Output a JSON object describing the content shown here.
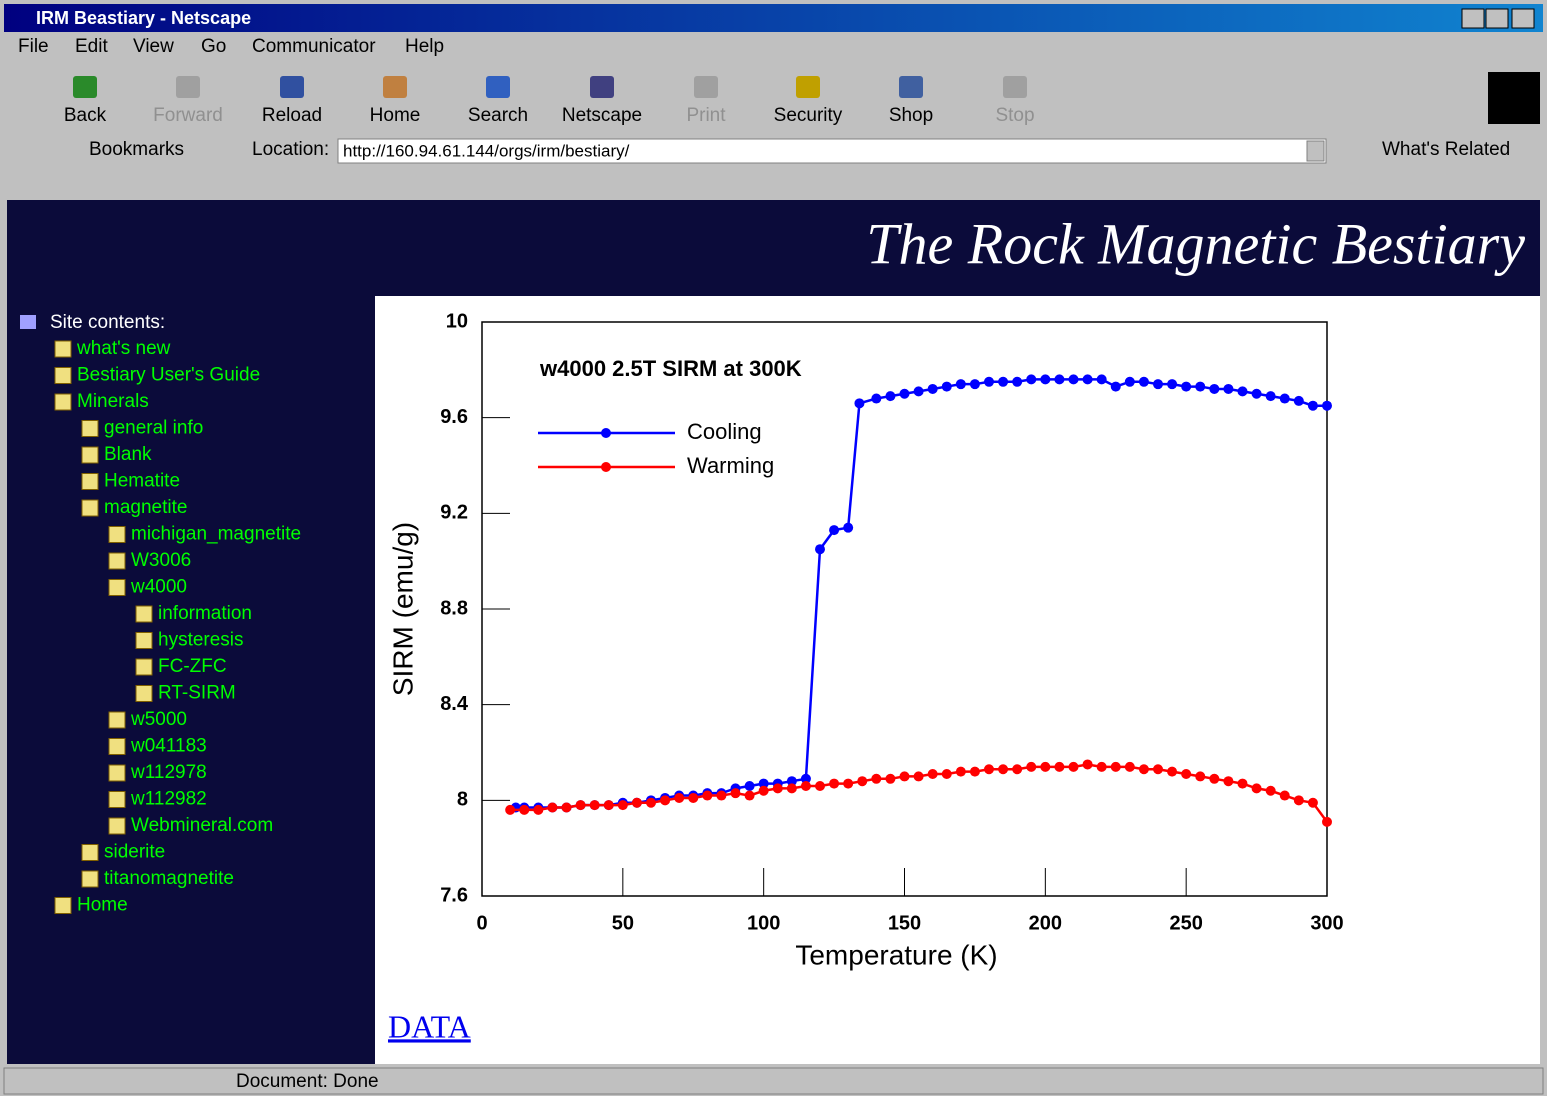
{
  "window": {
    "title": "IRM Beastiary - Netscape"
  },
  "menu": [
    "File",
    "Edit",
    "View",
    "Go",
    "Communicator",
    "Help"
  ],
  "toolbar": [
    "Back",
    "Forward",
    "Reload",
    "Home",
    "Search",
    "Netscape",
    "Print",
    "Security",
    "Shop",
    "Stop"
  ],
  "location_bar": {
    "bookmarks": "Bookmarks",
    "location_label": "Location:",
    "url": "http://160.94.61.144/orgs/irm/bestiary/",
    "related": "What's Related"
  },
  "banner": {
    "title": "The Rock Magnetic Bestiary"
  },
  "sidebar": {
    "heading": "Site contents:",
    "items": [
      "what's new",
      "Bestiary User's Guide",
      "Minerals",
      "general info",
      "Blank",
      "Hematite",
      "magnetite",
      "michigan_magnetite",
      "W3006",
      "w4000",
      "information",
      "hysteresis",
      "FC-ZFC",
      "RT-SIRM",
      "w5000",
      "w041183",
      "w112978",
      "w112982",
      "Webmineral.com",
      "siderite",
      "titanomagnetite",
      "Home"
    ]
  },
  "chart_data": {
    "type": "line",
    "title": "w4000 2.5T SIRM at 300K",
    "x_label": "Temperature (K)",
    "y_label": "SIRM (emu/g)",
    "xlim": [
      0,
      300
    ],
    "ylim": [
      7.6,
      10
    ],
    "xticks": [
      0,
      50,
      100,
      150,
      200,
      250,
      300
    ],
    "yticks": [
      7.6,
      8,
      8.4,
      8.8,
      9.2,
      9.6,
      10
    ],
    "legend": "upper left",
    "markers": true,
    "series": [
      {
        "name": "Cooling",
        "color": "#0000ff",
        "x": [
          12,
          15,
          20,
          25,
          30,
          35,
          40,
          45,
          50,
          55,
          60,
          65,
          70,
          75,
          80,
          85,
          90,
          95,
          100,
          105,
          110,
          115,
          120,
          125,
          130,
          134,
          140,
          145,
          150,
          155,
          160,
          165,
          170,
          175,
          180,
          185,
          190,
          195,
          200,
          205,
          210,
          215,
          220,
          225,
          230,
          235,
          240,
          245,
          250,
          255,
          260,
          265,
          270,
          275,
          280,
          285,
          290,
          295,
          300
        ],
        "values": [
          7.97,
          7.97,
          7.97,
          7.97,
          7.97,
          7.98,
          7.98,
          7.98,
          7.99,
          7.99,
          8.0,
          8.01,
          8.02,
          8.02,
          8.03,
          8.03,
          8.05,
          8.06,
          8.07,
          8.07,
          8.08,
          8.09,
          9.05,
          9.13,
          9.14,
          9.66,
          9.68,
          9.69,
          9.7,
          9.71,
          9.72,
          9.73,
          9.74,
          9.74,
          9.75,
          9.75,
          9.75,
          9.76,
          9.76,
          9.76,
          9.76,
          9.76,
          9.76,
          9.73,
          9.75,
          9.75,
          9.74,
          9.74,
          9.73,
          9.73,
          9.72,
          9.72,
          9.71,
          9.7,
          9.69,
          9.68,
          9.67,
          9.65,
          9.65
        ]
      },
      {
        "name": "Warming",
        "color": "#ff0000",
        "x": [
          10,
          15,
          20,
          25,
          30,
          35,
          40,
          45,
          50,
          55,
          60,
          65,
          70,
          75,
          80,
          85,
          90,
          95,
          100,
          105,
          110,
          115,
          120,
          125,
          130,
          135,
          140,
          145,
          150,
          155,
          160,
          165,
          170,
          175,
          180,
          185,
          190,
          195,
          200,
          205,
          210,
          215,
          220,
          225,
          230,
          235,
          240,
          245,
          250,
          255,
          260,
          265,
          270,
          275,
          280,
          285,
          290,
          295,
          300
        ],
        "values": [
          7.96,
          7.96,
          7.96,
          7.97,
          7.97,
          7.98,
          7.98,
          7.98,
          7.98,
          7.99,
          7.99,
          8.0,
          8.01,
          8.01,
          8.02,
          8.02,
          8.03,
          8.02,
          8.04,
          8.05,
          8.05,
          8.06,
          8.06,
          8.07,
          8.07,
          8.08,
          8.09,
          8.09,
          8.1,
          8.1,
          8.11,
          8.11,
          8.12,
          8.12,
          8.13,
          8.13,
          8.13,
          8.14,
          8.14,
          8.14,
          8.14,
          8.15,
          8.14,
          8.14,
          8.14,
          8.13,
          8.13,
          8.12,
          8.11,
          8.1,
          8.09,
          8.08,
          8.07,
          8.05,
          8.04,
          8.02,
          8.0,
          7.99,
          7.91
        ]
      }
    ]
  },
  "link": "DATA",
  "status": "Document: Done"
}
